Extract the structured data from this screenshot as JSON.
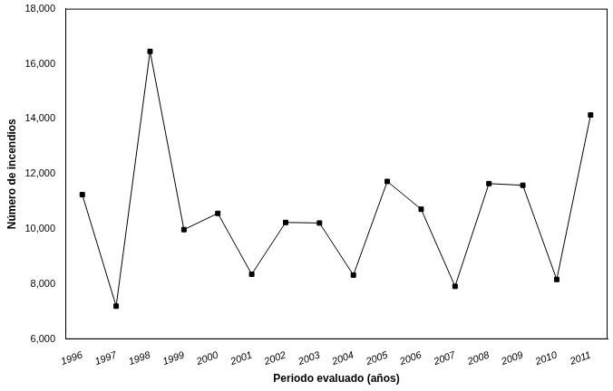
{
  "chart_data": {
    "type": "line",
    "x_label": "Periodo evaluado (años)",
    "y_label": "Número de incendios",
    "categories": [
      "1996",
      "1997",
      "1998",
      "1999",
      "2000",
      "2001",
      "2002",
      "2003",
      "2004",
      "2005",
      "2006",
      "2007",
      "2008",
      "2009",
      "2010",
      "2011"
    ],
    "values": [
      11250,
      7200,
      16450,
      9980,
      10570,
      8360,
      10240,
      10220,
      8330,
      11730,
      10720,
      7920,
      11650,
      11590,
      8170,
      14140
    ],
    "color": "#000000",
    "marker": "square",
    "line_style": "solid",
    "ylim": [
      6000,
      18000
    ],
    "yticks": [
      {
        "value": 6000,
        "label": "6,000"
      },
      {
        "value": 8000,
        "label": "8,000"
      },
      {
        "value": 10000,
        "label": "10,000"
      },
      {
        "value": 12000,
        "label": "12,000"
      },
      {
        "value": 14000,
        "label": "14,000"
      },
      {
        "value": 16000,
        "label": "16,000"
      },
      {
        "value": 18000,
        "label": "18,000"
      }
    ],
    "grid": false
  }
}
